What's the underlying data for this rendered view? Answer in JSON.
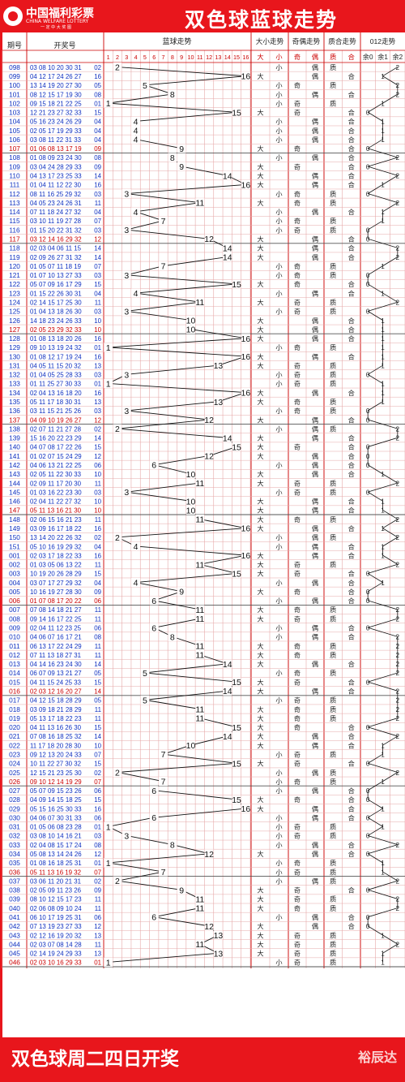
{
  "header": {
    "logo_cn": "中国福利彩票",
    "logo_en": "CHINA WELFARE LOTTERY",
    "logo_tag": "一 定 中 大 奖 图",
    "title": "双色球蓝球走势"
  },
  "footer": {
    "main": "双色球周二四日开奖",
    "sub": "裕辰达"
  },
  "columns": {
    "issue": "期号",
    "draw": "开奖号",
    "blue": "蓝球走势",
    "size": "大小走势",
    "parity": "奇偶走势",
    "prime": "质合走势",
    "mod": "012走势"
  },
  "subheaders": {
    "blue": [
      "1",
      "2",
      "3",
      "4",
      "5",
      "6",
      "7",
      "8",
      "9",
      "10",
      "11",
      "12",
      "13",
      "14",
      "15",
      "16"
    ],
    "size": [
      "大",
      "小"
    ],
    "parity": [
      "奇",
      "偶"
    ],
    "prime": [
      "质",
      "合"
    ],
    "mod": [
      "余0",
      "余1",
      "余2"
    ]
  },
  "colors": {
    "red": "#e8161c",
    "blue": "#1030c0",
    "grid": "#e6a8a8",
    "accent": "#cc0000"
  },
  "chart_data": {
    "type": "line",
    "title": "双色球蓝球走势",
    "x_key": "issue",
    "ylim": [
      1,
      16
    ],
    "rows": [
      {
        "issue": "098",
        "draw": "03 08 10 20 30 31",
        "blue": 2
      },
      {
        "issue": "099",
        "draw": "04 12 17 24 26 27",
        "blue": 16
      },
      {
        "issue": "100",
        "draw": "13 14 19 20 27 30",
        "blue": 5
      },
      {
        "issue": "101",
        "draw": "08 12 15 17 19 30",
        "blue": 8
      },
      {
        "issue": "102",
        "draw": "09 15 18 21 22 25",
        "blue": 1
      },
      {
        "issue": "103",
        "draw": "12 21 23 27 32 33",
        "blue": 15
      },
      {
        "issue": "104",
        "draw": "05 16 23 24 26 29",
        "blue": 4
      },
      {
        "issue": "105",
        "draw": "02 05 17 19 29 33",
        "blue": 4
      },
      {
        "issue": "106",
        "draw": "03 08 11 22 31 33",
        "blue": 4
      },
      {
        "issue": "107",
        "draw": "01 06 08 13 17 19",
        "blue": 9
      },
      {
        "issue": "108",
        "draw": "01 08 09 23 24 30",
        "blue": 8
      },
      {
        "issue": "109",
        "draw": "03 04 24 28 29 33",
        "blue": 9
      },
      {
        "issue": "110",
        "draw": "04 13 17 23 25 33",
        "blue": 14
      },
      {
        "issue": "111",
        "draw": "01 04 11 12 22 30",
        "blue": 16
      },
      {
        "issue": "112",
        "draw": "08 11 16 25 29 32",
        "blue": 3
      },
      {
        "issue": "113",
        "draw": "04 05 23 24 26 31",
        "blue": 11
      },
      {
        "issue": "114",
        "draw": "07 11 18 24 27 32",
        "blue": 4
      },
      {
        "issue": "115",
        "draw": "03 10 11 19 27 28",
        "blue": 7
      },
      {
        "issue": "116",
        "draw": "01 15 20 22 31 32",
        "blue": 3
      },
      {
        "issue": "117",
        "draw": "03 12 14 16 29 32",
        "blue": 12
      },
      {
        "issue": "118",
        "draw": "02 03 04 06 11 15",
        "blue": 14
      },
      {
        "issue": "119",
        "draw": "02 09 26 27 31 32",
        "blue": 14
      },
      {
        "issue": "120",
        "draw": "01 05 07 11 18 19",
        "blue": 7
      },
      {
        "issue": "121",
        "draw": "01 07 10 13 27 33",
        "blue": 3
      },
      {
        "issue": "122",
        "draw": "05 07 09 16 17 29",
        "blue": 15
      },
      {
        "issue": "123",
        "draw": "01 15 22 26 30 31",
        "blue": 4
      },
      {
        "issue": "124",
        "draw": "02 14 15 17 25 30",
        "blue": 11
      },
      {
        "issue": "125",
        "draw": "01 04 13 18 26 30",
        "blue": 3
      },
      {
        "issue": "126",
        "draw": "14 18 23 24 26 33",
        "blue": 10
      },
      {
        "issue": "127",
        "draw": "02 05 23 29 32 33",
        "blue": 10
      },
      {
        "issue": "128",
        "draw": "01 08 13 18 20 26",
        "blue": 16
      },
      {
        "issue": "129",
        "draw": "09 10 13 19 24 32",
        "blue": 1
      },
      {
        "issue": "130",
        "draw": "01 08 12 17 19 24",
        "blue": 16
      },
      {
        "issue": "131",
        "draw": "04 05 11 15 20 32",
        "blue": 13
      },
      {
        "issue": "132",
        "draw": "01 04 05 25 28 33",
        "blue": 3
      },
      {
        "issue": "133",
        "draw": "01 11 25 27 30 33",
        "blue": 1
      },
      {
        "issue": "134",
        "draw": "02 04 13 16 18 20",
        "blue": 16
      },
      {
        "issue": "135",
        "draw": "05 11 17 18 30 31",
        "blue": 13
      },
      {
        "issue": "136",
        "draw": "03 11 15 21 25 26",
        "blue": 3
      },
      {
        "issue": "137",
        "draw": "04 09 10 19 26 27",
        "blue": 12
      },
      {
        "issue": "138",
        "draw": "02 07 11 21 27 28",
        "blue": 2
      },
      {
        "issue": "139",
        "draw": "15 16 20 22 23 29",
        "blue": 14
      },
      {
        "issue": "140",
        "draw": "04 07 08 17 22 26",
        "blue": 15
      },
      {
        "issue": "141",
        "draw": "01 02 07 15 24 29",
        "blue": 12
      },
      {
        "issue": "142",
        "draw": "04 06 13 21 22 25",
        "blue": 6
      },
      {
        "issue": "143",
        "draw": "02 05 11 22 30 33",
        "blue": 10
      },
      {
        "issue": "144",
        "draw": "02 09 11 17 20 30",
        "blue": 11
      },
      {
        "issue": "145",
        "draw": "01 03 16 22 23 30",
        "blue": 3
      },
      {
        "issue": "146",
        "draw": "02 04 11 22 27 32",
        "blue": 10
      },
      {
        "issue": "147",
        "draw": "05 11 13 16 21 30",
        "blue": 10
      },
      {
        "issue": "148",
        "draw": "02 06 15 16 21 23",
        "blue": 11
      },
      {
        "issue": "149",
        "draw": "03 09 16 17 18 22",
        "blue": 16
      },
      {
        "issue": "150",
        "draw": "13 14 20 22 26 32",
        "blue": 2
      },
      {
        "issue": "151",
        "draw": "05 10 16 19 29 32",
        "blue": 4
      },
      {
        "issue": "001",
        "draw": "02 03 17 18 22 33",
        "blue": 16
      },
      {
        "issue": "002",
        "draw": "01 03 05 06 13 22",
        "blue": 11
      },
      {
        "issue": "003",
        "draw": "10 19 20 26 28 29",
        "blue": 15
      },
      {
        "issue": "004",
        "draw": "03 07 17 27 29 32",
        "blue": 4
      },
      {
        "issue": "005",
        "draw": "10 16 19 27 28 30",
        "blue": 9
      },
      {
        "issue": "006",
        "draw": "01 07 08 17 20 22",
        "blue": 6
      },
      {
        "issue": "007",
        "draw": "07 08 14 18 21 27",
        "blue": 11
      },
      {
        "issue": "008",
        "draw": "09 14 16 17 22 25",
        "blue": 11
      },
      {
        "issue": "009",
        "draw": "02 04 11 12 23 25",
        "blue": 6
      },
      {
        "issue": "010",
        "draw": "04 06 07 16 17 21",
        "blue": 8
      },
      {
        "issue": "011",
        "draw": "06 13 17 22 24 29",
        "blue": 11
      },
      {
        "issue": "012",
        "draw": "07 11 13 18 27 31",
        "blue": 11
      },
      {
        "issue": "013",
        "draw": "04 14 16 23 24 30",
        "blue": 14
      },
      {
        "issue": "014",
        "draw": "06 07 09 13 21 27",
        "blue": 5
      },
      {
        "issue": "015",
        "draw": "04 11 15 24 25 33",
        "blue": 15
      },
      {
        "issue": "016",
        "draw": "02 03 12 16 20 27",
        "blue": 14
      },
      {
        "issue": "017",
        "draw": "04 12 15 18 28 29",
        "blue": 5
      },
      {
        "issue": "018",
        "draw": "03 09 18 21 28 29",
        "blue": 11
      },
      {
        "issue": "019",
        "draw": "05 13 17 18 22 23",
        "blue": 11
      },
      {
        "issue": "020",
        "draw": "04 11 13 16 26 30",
        "blue": 15
      },
      {
        "issue": "021",
        "draw": "07 08 16 18 25 32",
        "blue": 14
      },
      {
        "issue": "022",
        "draw": "11 17 18 20 28 30",
        "blue": 10
      },
      {
        "issue": "023",
        "draw": "09 12 13 20 24 33",
        "blue": 7
      },
      {
        "issue": "024",
        "draw": "10 11 22 27 30 32",
        "blue": 15
      },
      {
        "issue": "025",
        "draw": "12 15 21 23 25 30",
        "blue": 2
      },
      {
        "issue": "026",
        "draw": "09 10 12 14 19 29",
        "blue": 7
      },
      {
        "issue": "027",
        "draw": "05 07 09 15 23 26",
        "blue": 6
      },
      {
        "issue": "028",
        "draw": "04 09 14 15 18 25",
        "blue": 15
      },
      {
        "issue": "029",
        "draw": "05 15 16 25 30 33",
        "blue": 16
      },
      {
        "issue": "030",
        "draw": "04 06 07 30 31 33",
        "blue": 6
      },
      {
        "issue": "031",
        "draw": "01 05 06 08 23 28",
        "blue": 1
      },
      {
        "issue": "032",
        "draw": "03 08 10 14 16 21",
        "blue": 3
      },
      {
        "issue": "033",
        "draw": "02 04 08 15 17 24",
        "blue": 8
      },
      {
        "issue": "034",
        "draw": "05 08 13 14 24 26",
        "blue": 12
      },
      {
        "issue": "035",
        "draw": "01 08 16 18 25 31",
        "blue": 1
      },
      {
        "issue": "036",
        "draw": "05 11 13 16 19 32",
        "blue": 7
      },
      {
        "issue": "037",
        "draw": "03 06 11 20 21 31",
        "blue": 2
      },
      {
        "issue": "038",
        "draw": "02 05 09 11 23 26",
        "blue": 9
      },
      {
        "issue": "039",
        "draw": "08 10 12 15 17 23",
        "blue": 11
      },
      {
        "issue": "040",
        "draw": "02 06 08 09 10 24",
        "blue": 11
      },
      {
        "issue": "041",
        "draw": "06 10 17 19 25 31",
        "blue": 6
      },
      {
        "issue": "042",
        "draw": "07 13 19 23 27 33",
        "blue": 12
      },
      {
        "issue": "043",
        "draw": "02 12 16 19 20 32",
        "blue": 13
      },
      {
        "issue": "044",
        "draw": "02 03 07 08 14 28",
        "blue": 11
      },
      {
        "issue": "045",
        "draw": "02 14 19 24 29 33",
        "blue": 13
      },
      {
        "issue": "046",
        "draw": "02 03 10 16 29 33",
        "blue": 1
      }
    ]
  }
}
